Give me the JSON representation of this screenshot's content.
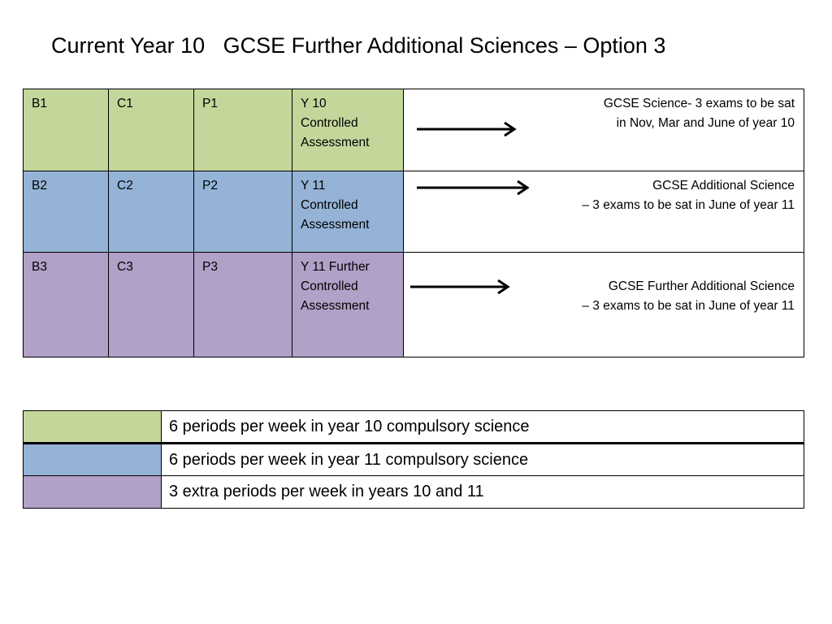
{
  "title": "Current Year 10   GCSE Further Additional Sciences – Option 3",
  "colors": {
    "green": "#c4d79b",
    "blue": "#95b3d7",
    "purple": "#b1a0c7"
  },
  "rows": [
    {
      "b": "B1",
      "c": "C1",
      "p": "P1",
      "assessment_lines": [
        "Y 10",
        "Controlled",
        "Assessment"
      ],
      "result_lines": [
        "GCSE Science- 3 exams to be sat",
        "in Nov, Mar and June of year 10"
      ]
    },
    {
      "b": "B2",
      "c": "C2",
      "p": "P2",
      "assessment_lines": [
        "Y 11",
        "Controlled",
        "Assessment"
      ],
      "result_lines": [
        "GCSE Additional Science",
        "– 3 exams to be sat in June of year 11"
      ]
    },
    {
      "b": "B3",
      "c": "C3",
      "p": "P3",
      "assessment_lines": [
        "Y 11 Further",
        "Controlled",
        "Assessment"
      ],
      "result_lines": [
        "GCSE  Further Additional Science",
        "– 3 exams to be sat in June of year 11"
      ]
    }
  ],
  "key": [
    {
      "color": "green",
      "text": "6 periods per week in year 10 compulsory science"
    },
    {
      "color": "blue",
      "text": "6 periods per week in year 11 compulsory science"
    },
    {
      "color": "purple",
      "text": "3 extra periods per week in years 10 and 11"
    }
  ]
}
